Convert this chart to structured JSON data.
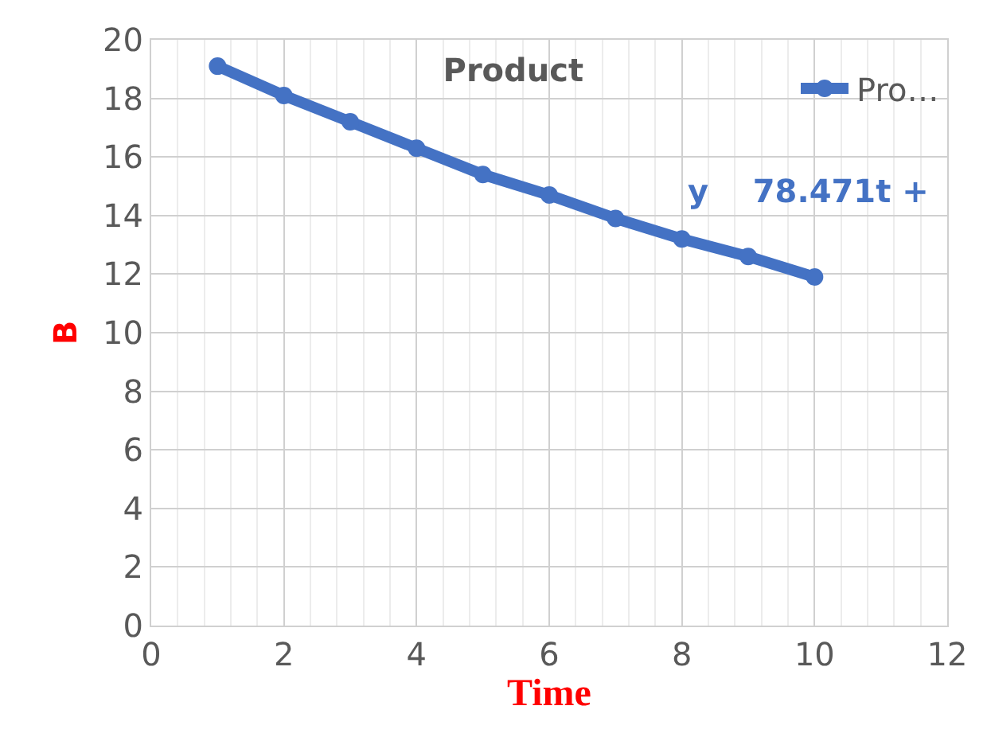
{
  "chart_data": {
    "type": "line",
    "title": "Product",
    "xlabel": "Time",
    "ylabel": "B",
    "x": [
      1,
      2,
      3,
      4,
      5,
      6,
      7,
      8,
      9,
      10
    ],
    "series": [
      {
        "name": "Pro…",
        "color": "#4472c4",
        "values": [
          19.1,
          18.1,
          17.2,
          16.3,
          15.4,
          14.7,
          13.9,
          13.2,
          12.6,
          11.9
        ]
      }
    ],
    "xlim": [
      0,
      12
    ],
    "xticks": [
      0,
      2,
      4,
      6,
      8,
      10,
      12
    ],
    "ylim": [
      0,
      20
    ],
    "yticks": [
      0,
      2,
      4,
      6,
      8,
      10,
      12,
      14,
      16,
      18,
      20
    ],
    "annotations": [
      "y    78.471t +"
    ],
    "grid": true,
    "legend": "top right",
    "marker": "circle",
    "line_style": "solid"
  }
}
